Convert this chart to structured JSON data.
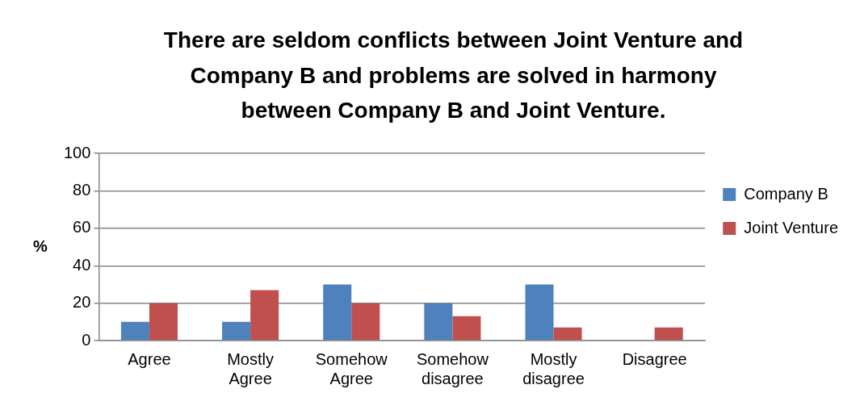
{
  "chart_data": {
    "type": "bar",
    "title": "There are seldom conflicts between Joint Venture and Company B and problems are solved in harmony between Company B and Joint Venture.",
    "ylabel": "%",
    "categories": [
      "Agree",
      "Mostly Agree",
      "Somehow Agree",
      "Somehow disagree",
      "Mostly disagree",
      "Disagree"
    ],
    "series": [
      {
        "name": "Company B",
        "color": "#4f81bd",
        "values": [
          10,
          10,
          30,
          20,
          30,
          0
        ]
      },
      {
        "name": "Joint Venture",
        "color": "#c0504d",
        "values": [
          20,
          27,
          20,
          13,
          7,
          7
        ]
      }
    ],
    "ylim": [
      0,
      100
    ],
    "yticks": [
      0,
      20,
      40,
      60,
      80,
      100
    ],
    "grid": "y",
    "legend": "right"
  }
}
